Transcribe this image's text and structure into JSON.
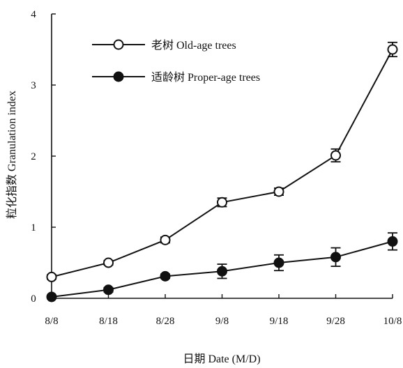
{
  "chart_data": {
    "type": "line",
    "title": "",
    "xlabel": "日期 Date (M/D)",
    "ylabel": "粒化指数 Granulation index",
    "categories": [
      "8/8",
      "8/18",
      "8/28",
      "9/8",
      "9/18",
      "9/28",
      "10/8"
    ],
    "ylim": [
      0,
      4
    ],
    "yticks": [
      0,
      1,
      2,
      3,
      4
    ],
    "grid": false,
    "legend_position": "top-left",
    "series": [
      {
        "name": "老树 Old-age trees",
        "marker": "open-circle",
        "color": "#111111",
        "values": [
          0.3,
          0.5,
          0.82,
          1.35,
          1.5,
          2.01,
          3.5
        ],
        "errors": [
          0.03,
          0.03,
          0.04,
          0.06,
          0.05,
          0.09,
          0.1
        ]
      },
      {
        "name": "适龄树 Proper-age trees",
        "marker": "filled-circle",
        "color": "#111111",
        "values": [
          0.02,
          0.12,
          0.31,
          0.38,
          0.5,
          0.58,
          0.8
        ],
        "errors": [
          0.02,
          0.03,
          0.03,
          0.1,
          0.11,
          0.13,
          0.12
        ]
      }
    ]
  }
}
